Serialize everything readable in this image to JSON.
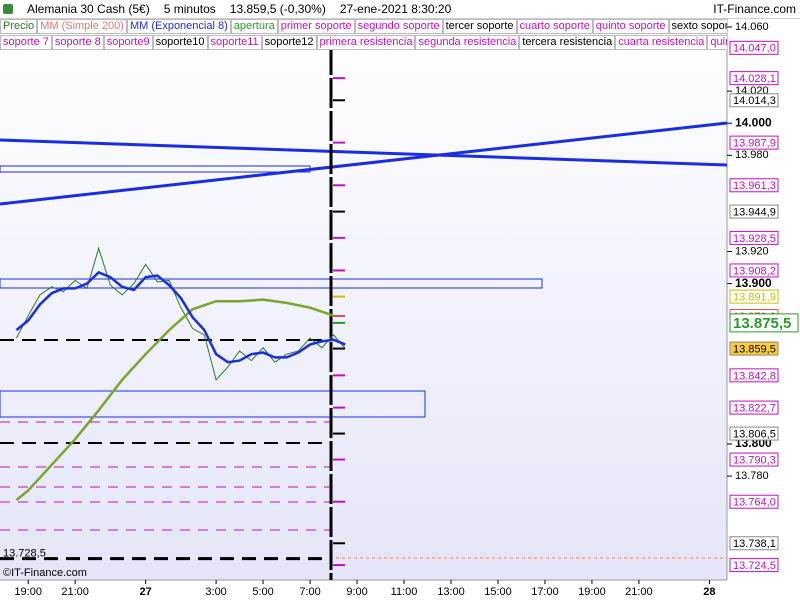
{
  "chart_data": {
    "type": "line",
    "title": "Alemania 30 Cash (5€)",
    "interval": "5 minutos",
    "last_price": "13.859,5 (-0,30%)",
    "timestamp": "27-ene-2021 8:30:20",
    "source": "IT-Finance.com",
    "copyright": "©IT-Finance.com",
    "xlim": [
      "2021-01-26T17:48",
      "2021-01-28T00:45"
    ],
    "xticks": [
      {
        "value": "2021-01-26T19:00",
        "label": "19:00"
      },
      {
        "value": "2021-01-26T21:00",
        "label": "21:00"
      },
      {
        "value": "2021-01-27T00:00",
        "label": "27",
        "bold": true
      },
      {
        "value": "2021-01-27T03:00",
        "label": "3:00"
      },
      {
        "value": "2021-01-27T05:00",
        "label": "5:00"
      },
      {
        "value": "2021-01-27T07:00",
        "label": "7:00"
      },
      {
        "value": "2021-01-27T09:00",
        "label": "9:00"
      },
      {
        "value": "2021-01-27T11:00",
        "label": "11:00"
      },
      {
        "value": "2021-01-27T13:00",
        "label": "13:00"
      },
      {
        "value": "2021-01-27T15:00",
        "label": "15:00"
      },
      {
        "value": "2021-01-27T17:00",
        "label": "17:00"
      },
      {
        "value": "2021-01-27T19:00",
        "label": "19:00"
      },
      {
        "value": "2021-01-27T21:00",
        "label": "21:00"
      },
      {
        "value": "2021-01-28T00:00",
        "label": "28",
        "bold": true
      }
    ],
    "ylim": [
      13715.2,
      14065.6
    ],
    "yticks": [
      {
        "value": 14060,
        "label": "14.060"
      },
      {
        "value": 14020,
        "label": "14.020"
      },
      {
        "value": 14000,
        "label": "14.000",
        "bold": true
      },
      {
        "value": 13980,
        "label": "13.980"
      },
      {
        "value": 13920,
        "label": "13.920"
      },
      {
        "value": 13900,
        "label": "13.900",
        "bold": true
      },
      {
        "value": 13800,
        "label": "13.800",
        "bold": true
      },
      {
        "value": 13780,
        "label": "13.780"
      }
    ],
    "series": [
      {
        "name": "Precio",
        "color": "#2a7a2a",
        "x": [
          "2021-01-26T18:30",
          "2021-01-26T19:00",
          "2021-01-26T19:30",
          "2021-01-26T20:00",
          "2021-01-26T20:30",
          "2021-01-26T21:00",
          "2021-01-26T21:30",
          "2021-01-26T22:00",
          "2021-01-26T22:30",
          "2021-01-26T23:00",
          "2021-01-26T23:30",
          "2021-01-27T00:00",
          "2021-01-27T00:30",
          "2021-01-27T01:00",
          "2021-01-27T01:30",
          "2021-01-27T02:00",
          "2021-01-27T02:30",
          "2021-01-27T03:00",
          "2021-01-27T03:30",
          "2021-01-27T04:00",
          "2021-01-27T04:30",
          "2021-01-27T05:00",
          "2021-01-27T05:30",
          "2021-01-27T06:00",
          "2021-01-27T06:30",
          "2021-01-27T07:00",
          "2021-01-27T07:30",
          "2021-01-27T08:00",
          "2021-01-27T08:30"
        ],
        "values": [
          13866,
          13880,
          13893,
          13898,
          13895,
          13902,
          13897,
          13922,
          13899,
          13893,
          13900,
          13912,
          13901,
          13902,
          13885,
          13872,
          13868,
          13840,
          13848,
          13858,
          13852,
          13860,
          13851,
          13856,
          13858,
          13866,
          13860,
          13868,
          13859.5
        ]
      },
      {
        "name": "MM (Simple 200)",
        "color": "#e07a70",
        "line_color": "#7aa52a",
        "x": [
          "2021-01-26T18:30",
          "2021-01-26T19:00",
          "2021-01-26T20:00",
          "2021-01-26T21:00",
          "2021-01-26T22:00",
          "2021-01-26T23:00",
          "2021-01-27T00:00",
          "2021-01-27T01:00",
          "2021-01-27T02:00",
          "2021-01-27T03:00",
          "2021-01-27T04:00",
          "2021-01-27T05:00",
          "2021-01-27T06:00",
          "2021-01-27T07:00",
          "2021-01-27T08:00"
        ],
        "values": [
          13765,
          13771,
          13787,
          13803,
          13821,
          13840,
          13856,
          13871,
          13884,
          13889,
          13889,
          13890,
          13888,
          13885,
          13880
        ]
      },
      {
        "name": "MM (Exponencial 8)",
        "color": "#1a2ee0",
        "x": [
          "2021-01-26T18:30",
          "2021-01-26T19:00",
          "2021-01-26T19:30",
          "2021-01-26T20:00",
          "2021-01-26T20:30",
          "2021-01-26T21:00",
          "2021-01-26T21:30",
          "2021-01-26T22:00",
          "2021-01-26T22:30",
          "2021-01-26T23:00",
          "2021-01-26T23:30",
          "2021-01-27T00:00",
          "2021-01-27T00:30",
          "2021-01-27T01:00",
          "2021-01-27T01:30",
          "2021-01-27T02:00",
          "2021-01-27T02:30",
          "2021-01-27T03:00",
          "2021-01-27T03:30",
          "2021-01-27T04:00",
          "2021-01-27T04:30",
          "2021-01-27T05:00",
          "2021-01-27T05:30",
          "2021-01-27T06:00",
          "2021-01-27T06:30",
          "2021-01-27T07:00",
          "2021-01-27T07:30",
          "2021-01-27T08:00",
          "2021-01-27T08:30"
        ],
        "values": [
          13871,
          13877,
          13887,
          13894,
          13897,
          13897,
          13900,
          13907,
          13904,
          13898,
          13896,
          13904,
          13905,
          13899,
          13891,
          13879,
          13871,
          13856,
          13851,
          13852,
          13856,
          13857,
          13854,
          13854,
          13857,
          13862,
          13864,
          13865,
          13862
        ]
      }
    ],
    "indicators": [
      [
        {
          "name": "apertura",
          "color": "#2a9a2a"
        },
        {
          "name": "primer soporte",
          "color": "#c010c0"
        },
        {
          "name": "segundo soporte",
          "color": "#c010c0"
        },
        {
          "name": "tercer soporte",
          "color": "#000000"
        },
        {
          "name": "cuarto soporte",
          "color": "#c010c0"
        },
        {
          "name": "quinto soporte",
          "color": "#c010c0"
        },
        {
          "name": "sexto soporte",
          "color": "#000000"
        }
      ],
      [
        {
          "name": "soporte 7",
          "color": "#c010c0"
        },
        {
          "name": "soporte 8",
          "color": "#c010c0"
        },
        {
          "name": "soporte9",
          "color": "#c010c0"
        },
        {
          "name": "soporte10",
          "color": "#000000"
        },
        {
          "name": "soporte11",
          "color": "#c010c0"
        },
        {
          "name": "soporte12",
          "color": "#000000"
        },
        {
          "name": "primera resistencia",
          "color": "#c010c0"
        },
        {
          "name": "segunda resistencia",
          "color": "#c010c0"
        },
        {
          "name": "tercera resistencia",
          "color": "#000000"
        },
        {
          "name": "cuarta resistencia",
          "color": "#c010c0"
        },
        {
          "name": "quinta resistencia",
          "color": "#c010c0"
        }
      ]
    ],
    "levels": [
      {
        "value": 14047.0,
        "label": "14.047,0",
        "color": "#c010c0"
      },
      {
        "value": 14028.1,
        "label": "14.028,1",
        "color": "#c010c0"
      },
      {
        "value": 14014.3,
        "label": "14.014,3",
        "color": "#000000"
      },
      {
        "value": 13987.9,
        "label": "13.987,9",
        "color": "#c010c0"
      },
      {
        "value": 13961.3,
        "label": "13.961,3",
        "color": "#c010c0"
      },
      {
        "value": 13944.9,
        "label": "13.944,9",
        "color": "#000000"
      },
      {
        "value": 13928.5,
        "label": "13.928,5",
        "color": "#c010c0"
      },
      {
        "value": 13908.2,
        "label": "13.908,2",
        "color": "#c010c0"
      },
      {
        "value": 13891.9,
        "label": "13.891,9",
        "color": "#c8c000"
      },
      {
        "value": 13879.8,
        "label": "13.879,8",
        "color": "#e05050"
      },
      {
        "value": 13875.5,
        "label": "13.875,5",
        "color": "#2a9a2a",
        "big": true
      },
      {
        "value": 13859.5,
        "label": "13.859,5",
        "color": "#000000",
        "background": "#ffcc33"
      },
      {
        "value": 13842.8,
        "label": "13.842,8",
        "color": "#c010c0"
      },
      {
        "value": 13822.7,
        "label": "13.822,7",
        "color": "#c010c0"
      },
      {
        "value": 13806.5,
        "label": "13.806,5",
        "color": "#000000"
      },
      {
        "value": 13790.3,
        "label": "13.790,3",
        "color": "#c010c0"
      },
      {
        "value": 13764.0,
        "label": "13.764,0",
        "color": "#c010c0"
      },
      {
        "value": 13738.1,
        "label": "13.738,1",
        "color": "#000000"
      },
      {
        "value": 13724.5,
        "label": "13.724,5",
        "color": "#c010c0"
      }
    ],
    "left_level": {
      "value": 13728.5,
      "label": "13.728,5"
    }
  }
}
